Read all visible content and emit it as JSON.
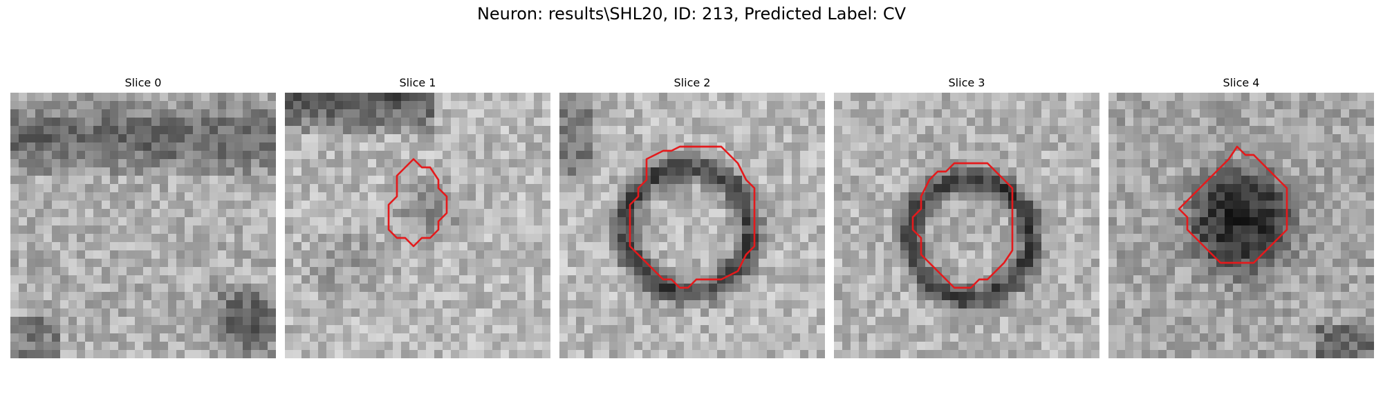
{
  "title": "Neuron: results\\SHL20, ID: 213, Predicted Label: CV",
  "panels": [
    {
      "label": "Slice 0",
      "contour": false
    },
    {
      "label": "Slice 1",
      "contour": true
    },
    {
      "label": "Slice 2",
      "contour": true
    },
    {
      "label": "Slice 3",
      "contour": true
    },
    {
      "label": "Slice 4",
      "contour": true
    }
  ],
  "contour_color": "#e41a1c",
  "colormap": "grayscale"
}
